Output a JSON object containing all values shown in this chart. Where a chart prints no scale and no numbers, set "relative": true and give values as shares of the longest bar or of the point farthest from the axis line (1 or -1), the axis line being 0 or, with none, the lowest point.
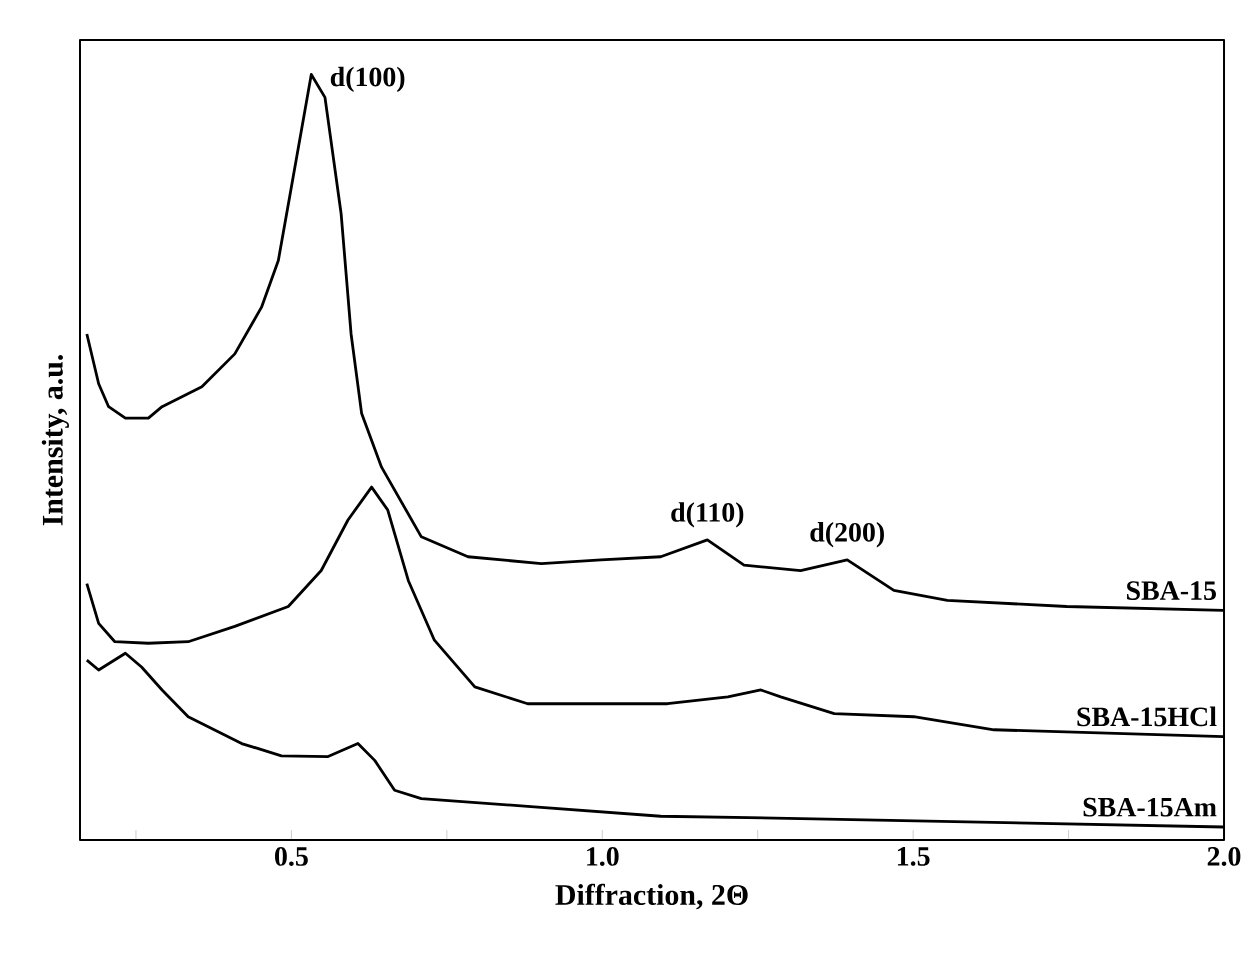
{
  "chart_data": {
    "type": "line",
    "relative": true,
    "xlabel": "Diffraction, 2Θ",
    "ylabel": "Intensity, a.u.",
    "xlim": [
      0.16,
      2.0
    ],
    "xticks": [
      {
        "value": 0.25,
        "label": null
      },
      0.5,
      {
        "value": 0.75,
        "label": null
      },
      {
        "value": 1.0,
        "label": "1.0"
      },
      {
        "value": 1.25,
        "label": null
      },
      1.5,
      {
        "value": 1.75,
        "label": null
      },
      {
        "value": 2.0,
        "label": "2.0"
      }
    ],
    "grid": false,
    "marker": "none",
    "line_style": "solid",
    "annotations": [
      {
        "text": "d(100)",
        "x": 0.532,
        "y": 1.0
      },
      {
        "text": "d(110)",
        "x": 1.169,
        "y": 0.392
      },
      {
        "text": "d(200)",
        "x": 1.394,
        "y": 0.366
      }
    ],
    "series": [
      {
        "name": "SBA-15",
        "color": "#000000",
        "x": [
          0.171,
          0.19,
          0.206,
          0.233,
          0.27,
          0.292,
          0.356,
          0.409,
          0.452,
          0.479,
          0.5,
          0.532,
          0.554,
          0.58,
          0.596,
          0.613,
          0.645,
          0.709,
          0.784,
          0.902,
          0.998,
          1.094,
          1.169,
          1.228,
          1.319,
          1.394,
          1.469,
          1.555,
          1.747,
          1.999
        ],
        "values": [
          0.661,
          0.596,
          0.566,
          0.551,
          0.551,
          0.566,
          0.592,
          0.635,
          0.696,
          0.757,
          0.853,
          1.0,
          0.97,
          0.818,
          0.661,
          0.557,
          0.487,
          0.396,
          0.37,
          0.361,
          0.366,
          0.37,
          0.392,
          0.359,
          0.352,
          0.366,
          0.326,
          0.313,
          0.305,
          0.3
        ]
      },
      {
        "name": "SBA-15HCl",
        "color": "#000000",
        "x": [
          0.171,
          0.19,
          0.216,
          0.27,
          0.334,
          0.409,
          0.495,
          0.548,
          0.591,
          0.629,
          0.655,
          0.688,
          0.73,
          0.795,
          0.88,
          0.998,
          1.105,
          1.202,
          1.255,
          1.287,
          1.373,
          1.501,
          1.63,
          1.999
        ],
        "values": [
          0.335,
          0.283,
          0.259,
          0.257,
          0.259,
          0.279,
          0.305,
          0.352,
          0.418,
          0.461,
          0.431,
          0.339,
          0.261,
          0.2,
          0.178,
          0.178,
          0.178,
          0.187,
          0.196,
          0.187,
          0.165,
          0.161,
          0.144,
          0.135
        ]
      },
      {
        "name": "SBA-15Am",
        "color": "#000000",
        "x": [
          0.171,
          0.19,
          0.233,
          0.259,
          0.292,
          0.334,
          0.42,
          0.484,
          0.559,
          0.607,
          0.634,
          0.666,
          0.709,
          0.88,
          1.094,
          1.319,
          1.999
        ],
        "values": [
          0.235,
          0.222,
          0.244,
          0.226,
          0.196,
          0.161,
          0.126,
          0.11,
          0.109,
          0.126,
          0.104,
          0.065,
          0.054,
          0.044,
          0.031,
          0.028,
          0.017
        ]
      }
    ]
  }
}
